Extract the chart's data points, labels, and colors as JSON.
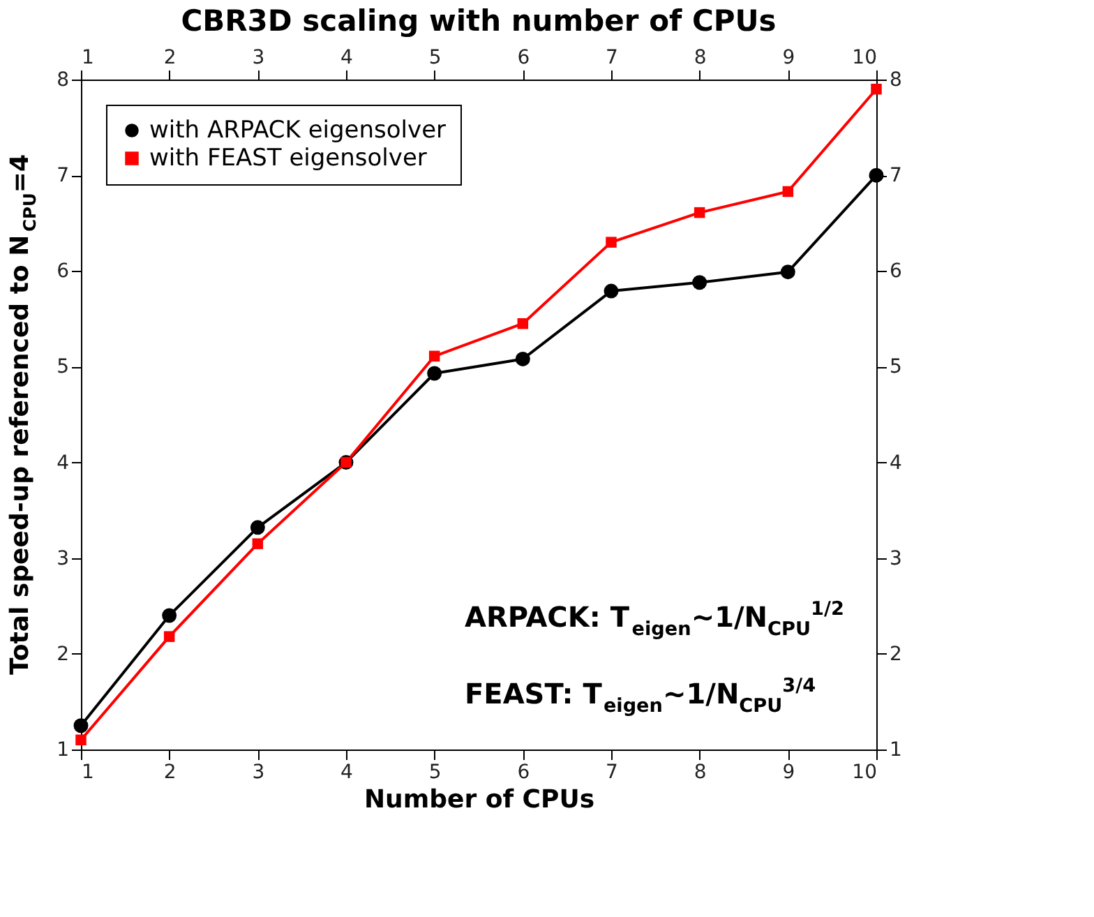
{
  "chart_data": {
    "type": "line",
    "title": "CBR3D scaling with number of CPUs",
    "xlabel": "Number of CPUs",
    "ylabel": "Total speed-up referenced to N$_{CPU}$=4",
    "x": [
      1,
      2,
      3,
      4,
      5,
      6,
      7,
      8,
      9,
      10
    ],
    "series": [
      {
        "name": "with ARPACK eigensolver",
        "color": "#000000",
        "marker": "circle",
        "values": [
          1.25,
          2.4,
          3.32,
          4.0,
          4.93,
          5.08,
          5.79,
          5.88,
          5.99,
          7.0
        ]
      },
      {
        "name": "with FEAST eigensolver",
        "color": "#ff0000",
        "marker": "square",
        "values": [
          1.1,
          2.18,
          3.15,
          4.0,
          5.11,
          5.45,
          6.3,
          6.61,
          6.83,
          7.9
        ]
      }
    ],
    "xlim": [
      1,
      10
    ],
    "xticks": [
      1,
      2,
      3,
      4,
      5,
      6,
      7,
      8,
      9,
      10
    ],
    "x2lim": [
      1,
      10
    ],
    "x2ticks": [
      1,
      2,
      3,
      4,
      5,
      6,
      7,
      8,
      9,
      10
    ],
    "ylim": [
      1,
      8
    ],
    "yticks": [
      1,
      2,
      3,
      4,
      5,
      6,
      7,
      8
    ],
    "y2lim": [
      1,
      8
    ],
    "y2ticks": [
      1,
      2,
      3,
      4,
      5,
      6,
      7,
      8
    ],
    "annotations": [
      "ARPACK: T$_{eigen}$~1/N$_{CPU}$$^{1/2}$",
      "FEAST:    T$_{eigen}$~1/N$_{CPU}$$^{3/4}$"
    ],
    "legend": "top left",
    "grid": false,
    "line_style": "solid"
  }
}
